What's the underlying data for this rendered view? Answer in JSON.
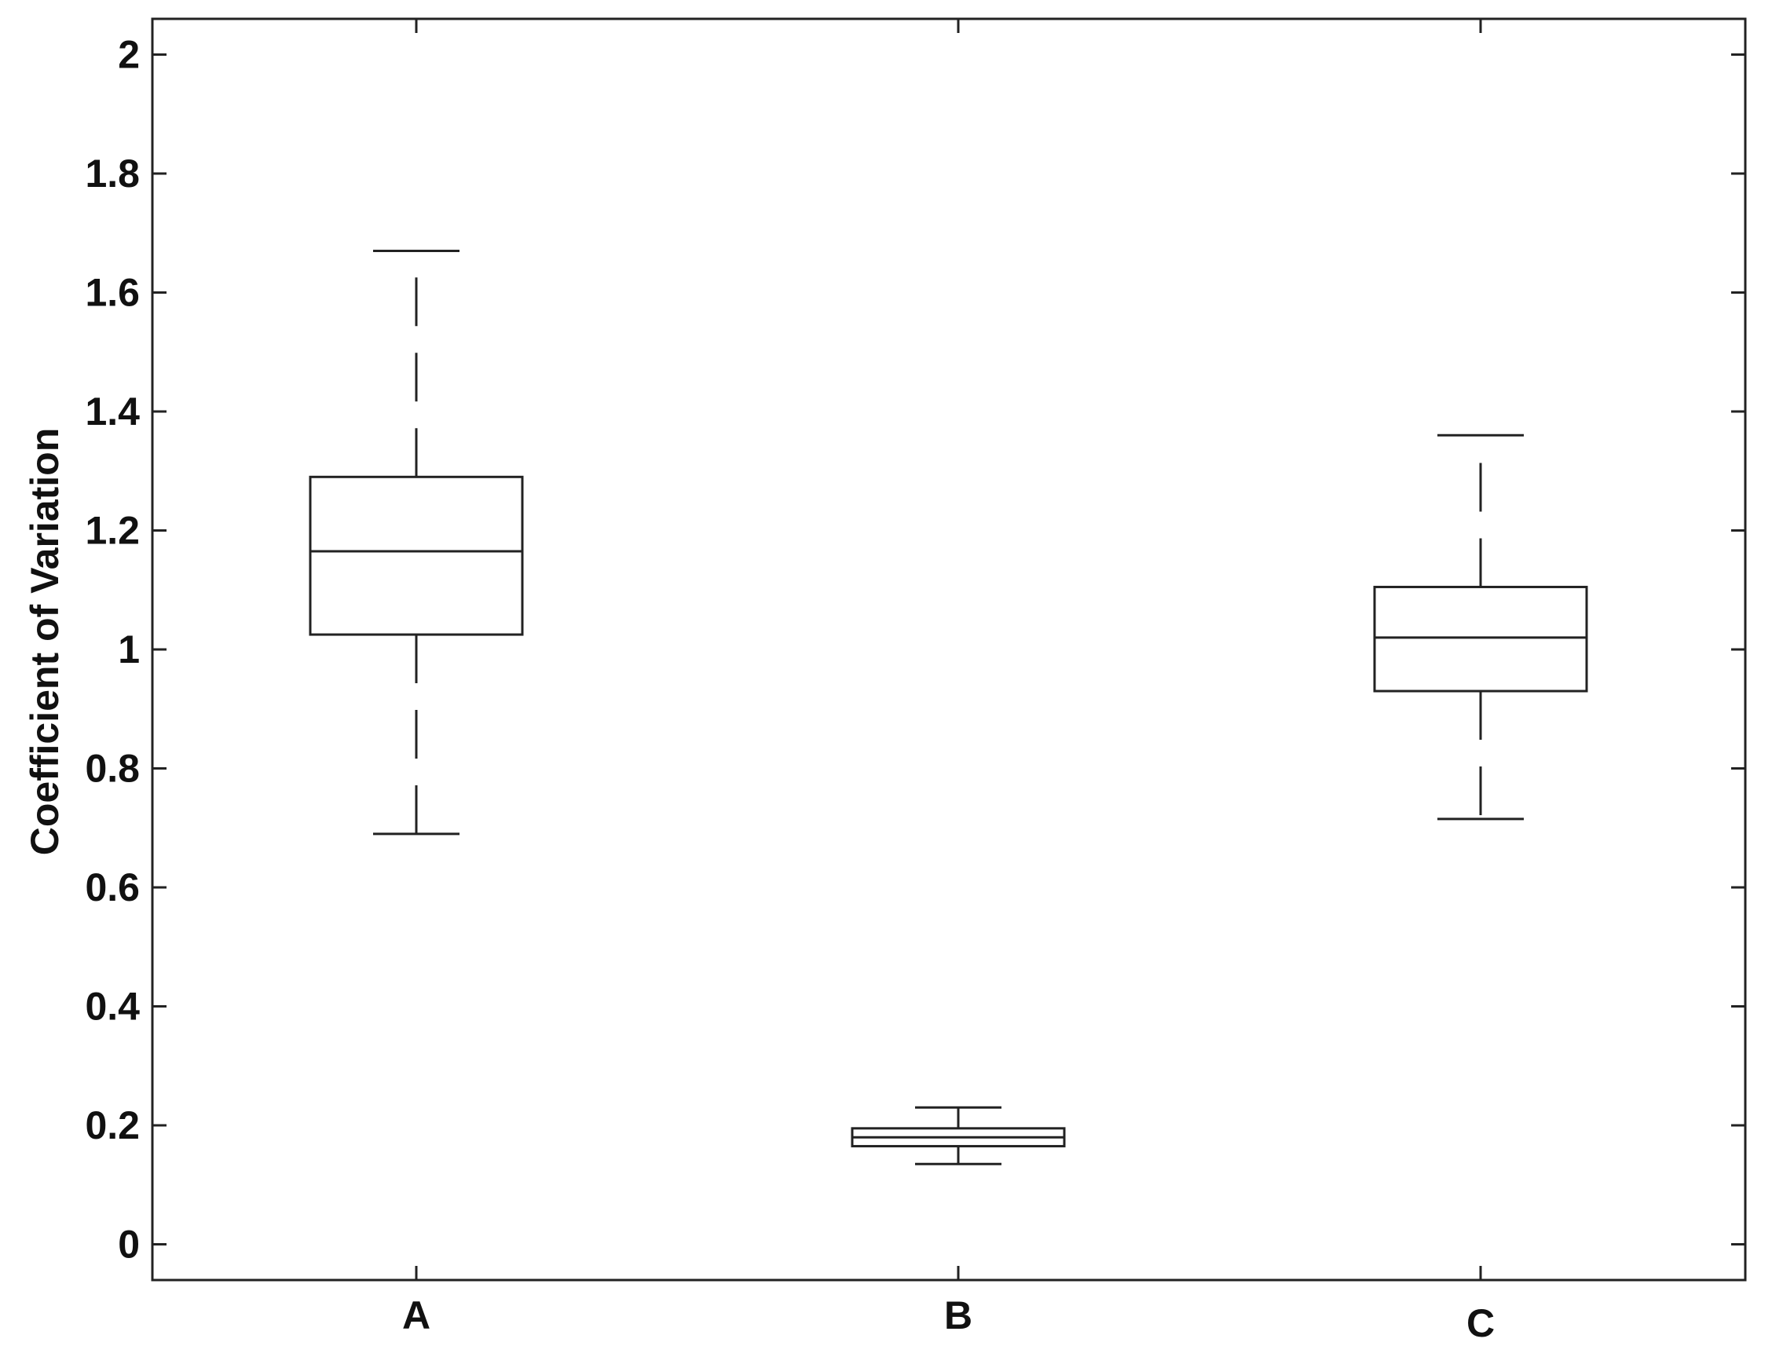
{
  "chart_data": {
    "type": "boxplot",
    "title": "",
    "xlabel": "",
    "ylabel": "Coefficient of Variation",
    "ylim": [
      -0.06,
      2.06
    ],
    "yticks": [
      0,
      0.2,
      0.4,
      0.6,
      0.8,
      1,
      1.2,
      1.4,
      1.6,
      1.8,
      2
    ],
    "ytick_labels": [
      "0",
      "0.2",
      "0.4",
      "0.6",
      "0.8",
      "1",
      "1.2",
      "1.4",
      "1.6",
      "1.8",
      "2"
    ],
    "grid": false,
    "categories": [
      "A",
      "B",
      "C"
    ],
    "boxes": [
      {
        "category": "A",
        "whisker_low": 0.69,
        "q1": 1.025,
        "median": 1.165,
        "q3": 1.29,
        "whisker_high": 1.67
      },
      {
        "category": "B",
        "whisker_low": 0.135,
        "q1": 0.165,
        "median": 0.18,
        "q3": 0.195,
        "whisker_high": 0.23
      },
      {
        "category": "C",
        "whisker_low": 0.715,
        "q1": 0.93,
        "median": 1.02,
        "q3": 1.105,
        "whisker_high": 1.36
      }
    ],
    "colors": {
      "line": "#222222",
      "background": "#ffffff"
    }
  }
}
